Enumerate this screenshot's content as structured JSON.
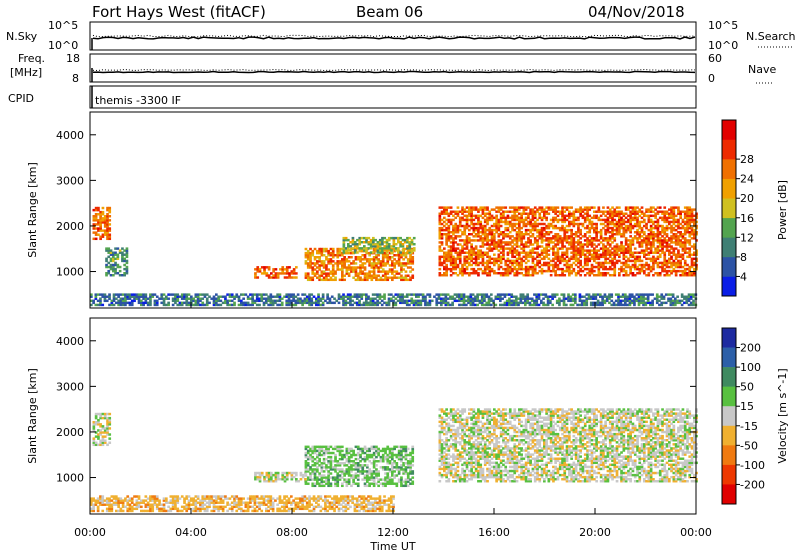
{
  "header": {
    "station": "Fort Hays West (fitACF)",
    "beam": "Beam 06",
    "date": "04/Nov/2018"
  },
  "top_panels": {
    "nsky": {
      "label": "N.Sky",
      "left_ticks": [
        "10^5",
        "10^0"
      ],
      "right_ticks": [
        "10^5",
        "10^0"
      ],
      "right_label": "N.Search"
    },
    "freq": {
      "label_line1": "Freq.",
      "label_line2": "[MHz]",
      "left_ticks": [
        "18",
        "8"
      ],
      "right_ticks": [
        "60",
        "0"
      ],
      "right_label": "Nave"
    },
    "cpid": {
      "label": "CPID",
      "text": "themis -3300 IF"
    }
  },
  "chart_data": [
    {
      "type": "heatmap",
      "name": "power",
      "ylabel": "Slant Range [km]",
      "xlabel": "",
      "xlim": [
        "00:00",
        "24:00"
      ],
      "ylim": [
        200,
        4500
      ],
      "yticks": [
        "1000",
        "2000",
        "3000",
        "4000"
      ],
      "colorbar": {
        "label": "Power [dB]",
        "ticks": [
          "4",
          "8",
          "12",
          "16",
          "20",
          "24",
          "28"
        ],
        "colors": [
          "#0a1ee6",
          "#2c53a5",
          "#3f7f74",
          "#53a44f",
          "#d0c020",
          "#f0a000",
          "#f07000",
          "#ee2a00",
          "#e20000"
        ],
        "range": [
          0,
          32
        ]
      },
      "regions": [
        {
          "t0": 0.1,
          "t1": 0.8,
          "r0": 1700,
          "r1": 2400,
          "level": 24
        },
        {
          "t0": 0.6,
          "t1": 1.5,
          "r0": 900,
          "r1": 1500,
          "level": 10
        },
        {
          "t0": 6.5,
          "t1": 8.2,
          "r0": 850,
          "r1": 1100,
          "level": 24
        },
        {
          "t0": 8.5,
          "t1": 12.8,
          "r0": 800,
          "r1": 1500,
          "level": 22
        },
        {
          "t0": 10.0,
          "t1": 12.8,
          "r0": 1400,
          "r1": 1750,
          "level": 14
        },
        {
          "t0": 13.8,
          "t1": 24.0,
          "r0": 900,
          "r1": 2400,
          "level": 24
        },
        {
          "t0": 0.0,
          "t1": 24.0,
          "r0": 250,
          "r1": 500,
          "level": 8
        }
      ]
    },
    {
      "type": "heatmap",
      "name": "velocity",
      "ylabel": "Slant Range [km]",
      "xlabel": "Time UT",
      "xlim": [
        "00:00",
        "24:00"
      ],
      "ylim": [
        200,
        4500
      ],
      "xticks": [
        "00:00",
        "04:00",
        "08:00",
        "12:00",
        "16:00",
        "20:00",
        "00:00"
      ],
      "yticks": [
        "1000",
        "2000",
        "3000",
        "4000"
      ],
      "colorbar": {
        "label": "Velocity [m s^-1]",
        "ticks": [
          "200",
          "100",
          "50",
          "15",
          "-15",
          "-50",
          "-100",
          "-200"
        ],
        "colors": [
          "#1d2aa0",
          "#2c5fa8",
          "#3f8a60",
          "#58c040",
          "#c8c8c8",
          "#f0b030",
          "#f07a10",
          "#ee3800",
          "#e00000"
        ],
        "range": [
          -250,
          250
        ]
      },
      "regions": [
        {
          "t0": 0.1,
          "t1": 0.8,
          "r0": 1700,
          "r1": 2400,
          "velocity": 0
        },
        {
          "t0": 6.5,
          "t1": 8.5,
          "r0": 900,
          "r1": 1100,
          "velocity": 0
        },
        {
          "t0": 8.5,
          "t1": 12.8,
          "r0": 800,
          "r1": 1700,
          "velocity": 30
        },
        {
          "t0": 13.8,
          "t1": 24.0,
          "r0": 900,
          "r1": 2500,
          "velocity": 0
        },
        {
          "t0": 0.0,
          "t1": 12.0,
          "r0": 250,
          "r1": 600,
          "velocity": -30
        }
      ]
    }
  ]
}
